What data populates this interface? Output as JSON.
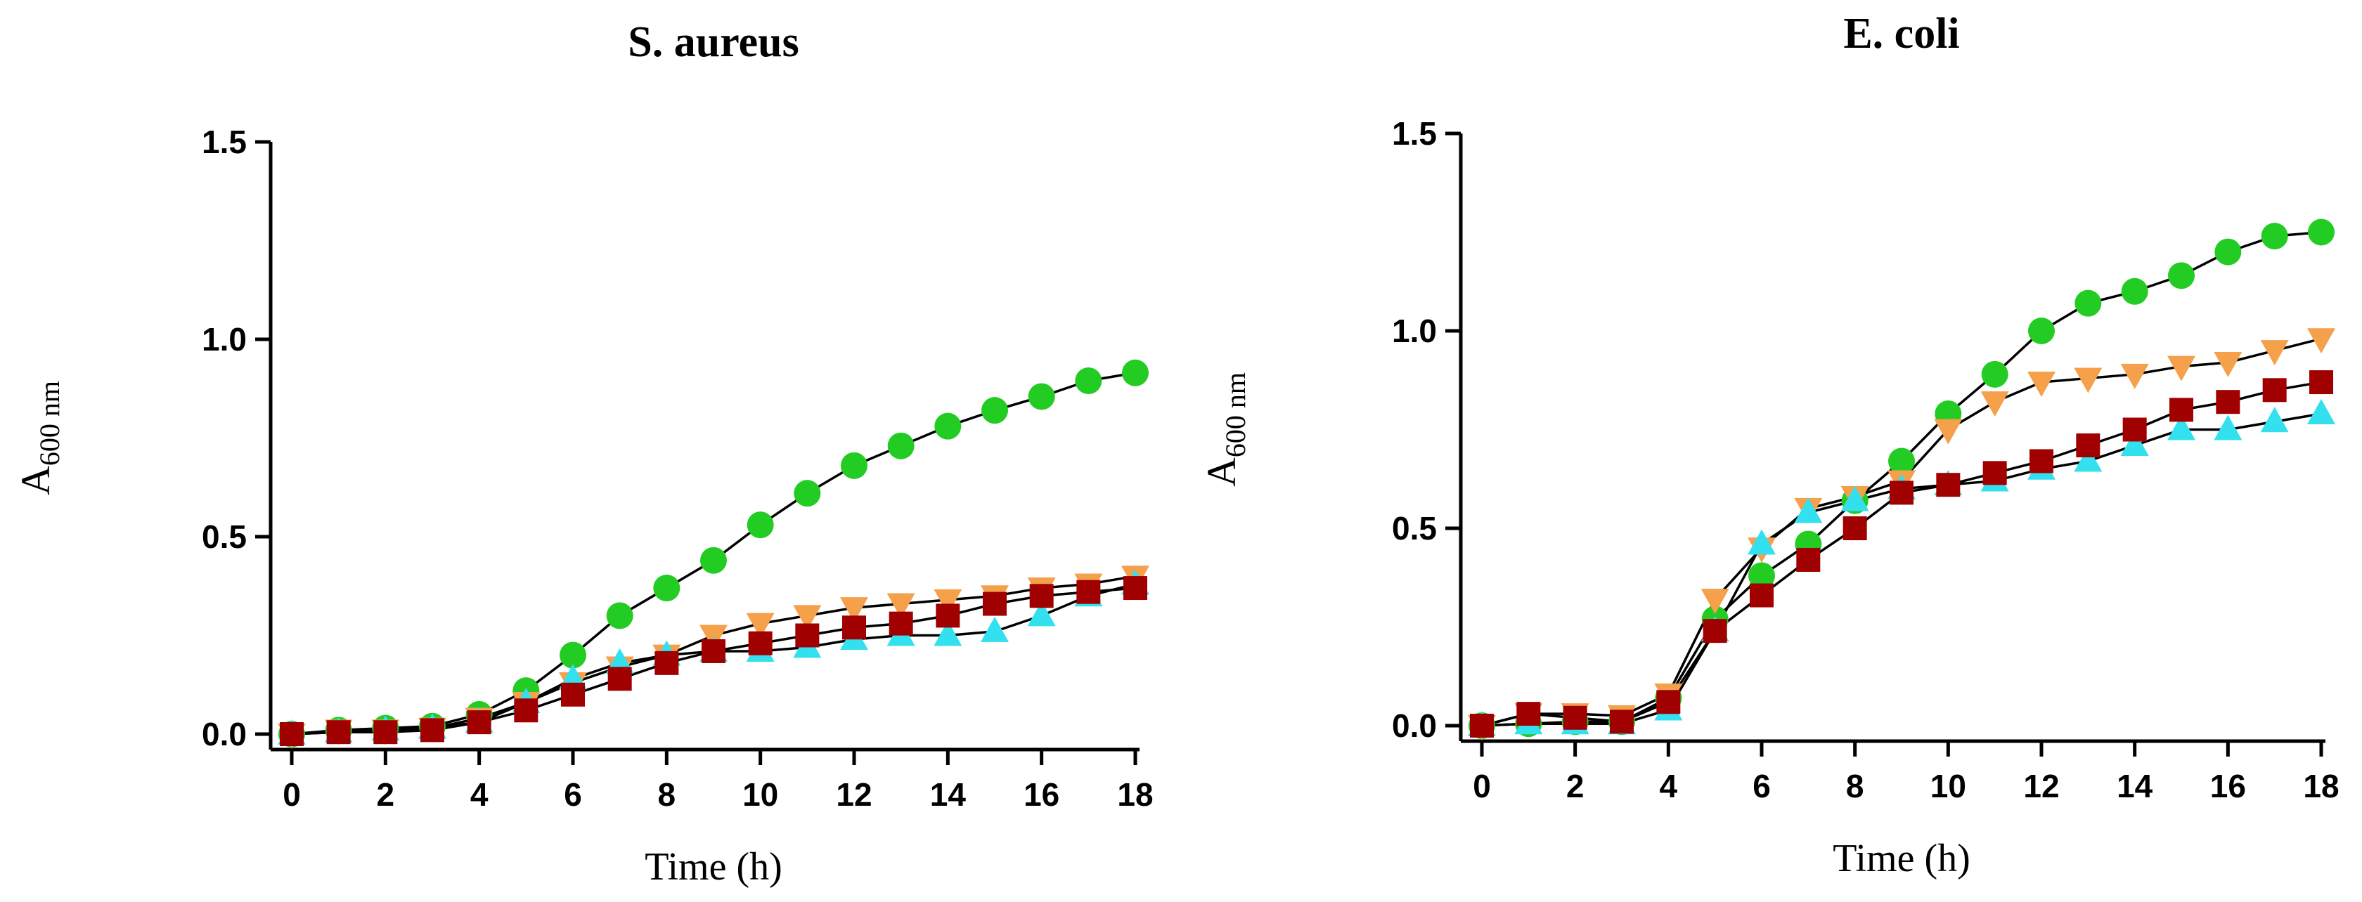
{
  "chart_data": [
    {
      "type": "line",
      "title": "S. aureus",
      "xlabel": "Time (h)",
      "ylabel": "A",
      "ylabel_sub": "600 nm",
      "xlim": [
        0,
        18
      ],
      "ylim": [
        0,
        1.5
      ],
      "xticks": [
        "0",
        "2",
        "4",
        "6",
        "8",
        "10",
        "12",
        "14",
        "16",
        "18"
      ],
      "yticks": [
        "0.0",
        "0.5",
        "1.0",
        "1.5"
      ],
      "x": [
        0,
        1,
        2,
        3,
        4,
        5,
        6,
        7,
        8,
        9,
        10,
        11,
        12,
        13,
        14,
        15,
        16,
        17,
        18
      ],
      "series": [
        {
          "name": "green",
          "marker": "circle",
          "color": "#22cc22",
          "values": [
            0.0,
            0.01,
            0.015,
            0.02,
            0.05,
            0.11,
            0.2,
            0.3,
            0.37,
            0.44,
            0.53,
            0.61,
            0.68,
            0.73,
            0.78,
            0.82,
            0.855,
            0.895,
            0.915
          ]
        },
        {
          "name": "orange",
          "marker": "triangle-down",
          "color": "#f5a04a",
          "values": [
            0.0,
            0.01,
            0.01,
            0.015,
            0.04,
            0.08,
            0.13,
            0.17,
            0.2,
            0.25,
            0.28,
            0.3,
            0.32,
            0.33,
            0.34,
            0.35,
            0.37,
            0.38,
            0.4
          ]
        },
        {
          "name": "cyan",
          "marker": "triangle-up",
          "color": "#33e0ee",
          "values": [
            0.0,
            0.005,
            0.01,
            0.015,
            0.03,
            0.08,
            0.14,
            0.18,
            0.2,
            0.21,
            0.21,
            0.22,
            0.24,
            0.25,
            0.25,
            0.26,
            0.3,
            0.35,
            0.38
          ]
        },
        {
          "name": "darkred",
          "marker": "square",
          "color": "#a00000",
          "values": [
            0.0,
            0.005,
            0.005,
            0.01,
            0.03,
            0.06,
            0.1,
            0.14,
            0.18,
            0.21,
            0.23,
            0.25,
            0.27,
            0.28,
            0.3,
            0.33,
            0.35,
            0.36,
            0.37
          ]
        }
      ]
    },
    {
      "type": "line",
      "title": "E. coli",
      "xlabel": "Time (h)",
      "ylabel": "A",
      "ylabel_sub": "600 nm",
      "xlim": [
        0,
        18
      ],
      "ylim": [
        0,
        1.5
      ],
      "xticks": [
        "0",
        "2",
        "4",
        "6",
        "8",
        "10",
        "12",
        "14",
        "16",
        "18"
      ],
      "yticks": [
        "0.0",
        "0.5",
        "1.0",
        "1.5"
      ],
      "x": [
        0,
        1,
        2,
        3,
        4,
        5,
        6,
        7,
        8,
        9,
        10,
        11,
        12,
        13,
        14,
        15,
        16,
        17,
        18
      ],
      "series": [
        {
          "name": "green",
          "marker": "circle",
          "color": "#22cc22",
          "values": [
            0.0,
            0.005,
            0.01,
            0.01,
            0.07,
            0.27,
            0.38,
            0.46,
            0.57,
            0.67,
            0.79,
            0.89,
            1.0,
            1.07,
            1.1,
            1.14,
            1.2,
            1.24,
            1.25
          ]
        },
        {
          "name": "orange",
          "marker": "triangle-down",
          "color": "#f5a04a",
          "values": [
            0.0,
            0.03,
            0.03,
            0.025,
            0.08,
            0.32,
            0.45,
            0.55,
            0.58,
            0.62,
            0.75,
            0.82,
            0.87,
            0.88,
            0.89,
            0.91,
            0.92,
            0.95,
            0.98
          ]
        },
        {
          "name": "cyan",
          "marker": "triangle-up",
          "color": "#33e0ee",
          "values": [
            0.0,
            0.005,
            0.005,
            0.005,
            0.04,
            0.24,
            0.46,
            0.54,
            0.57,
            0.6,
            0.61,
            0.62,
            0.65,
            0.67,
            0.71,
            0.75,
            0.75,
            0.77,
            0.79
          ]
        },
        {
          "name": "darkred",
          "marker": "square",
          "color": "#a00000",
          "values": [
            0.0,
            0.03,
            0.02,
            0.01,
            0.06,
            0.24,
            0.33,
            0.42,
            0.5,
            0.59,
            0.61,
            0.64,
            0.67,
            0.71,
            0.75,
            0.8,
            0.82,
            0.85,
            0.87
          ]
        }
      ]
    }
  ]
}
